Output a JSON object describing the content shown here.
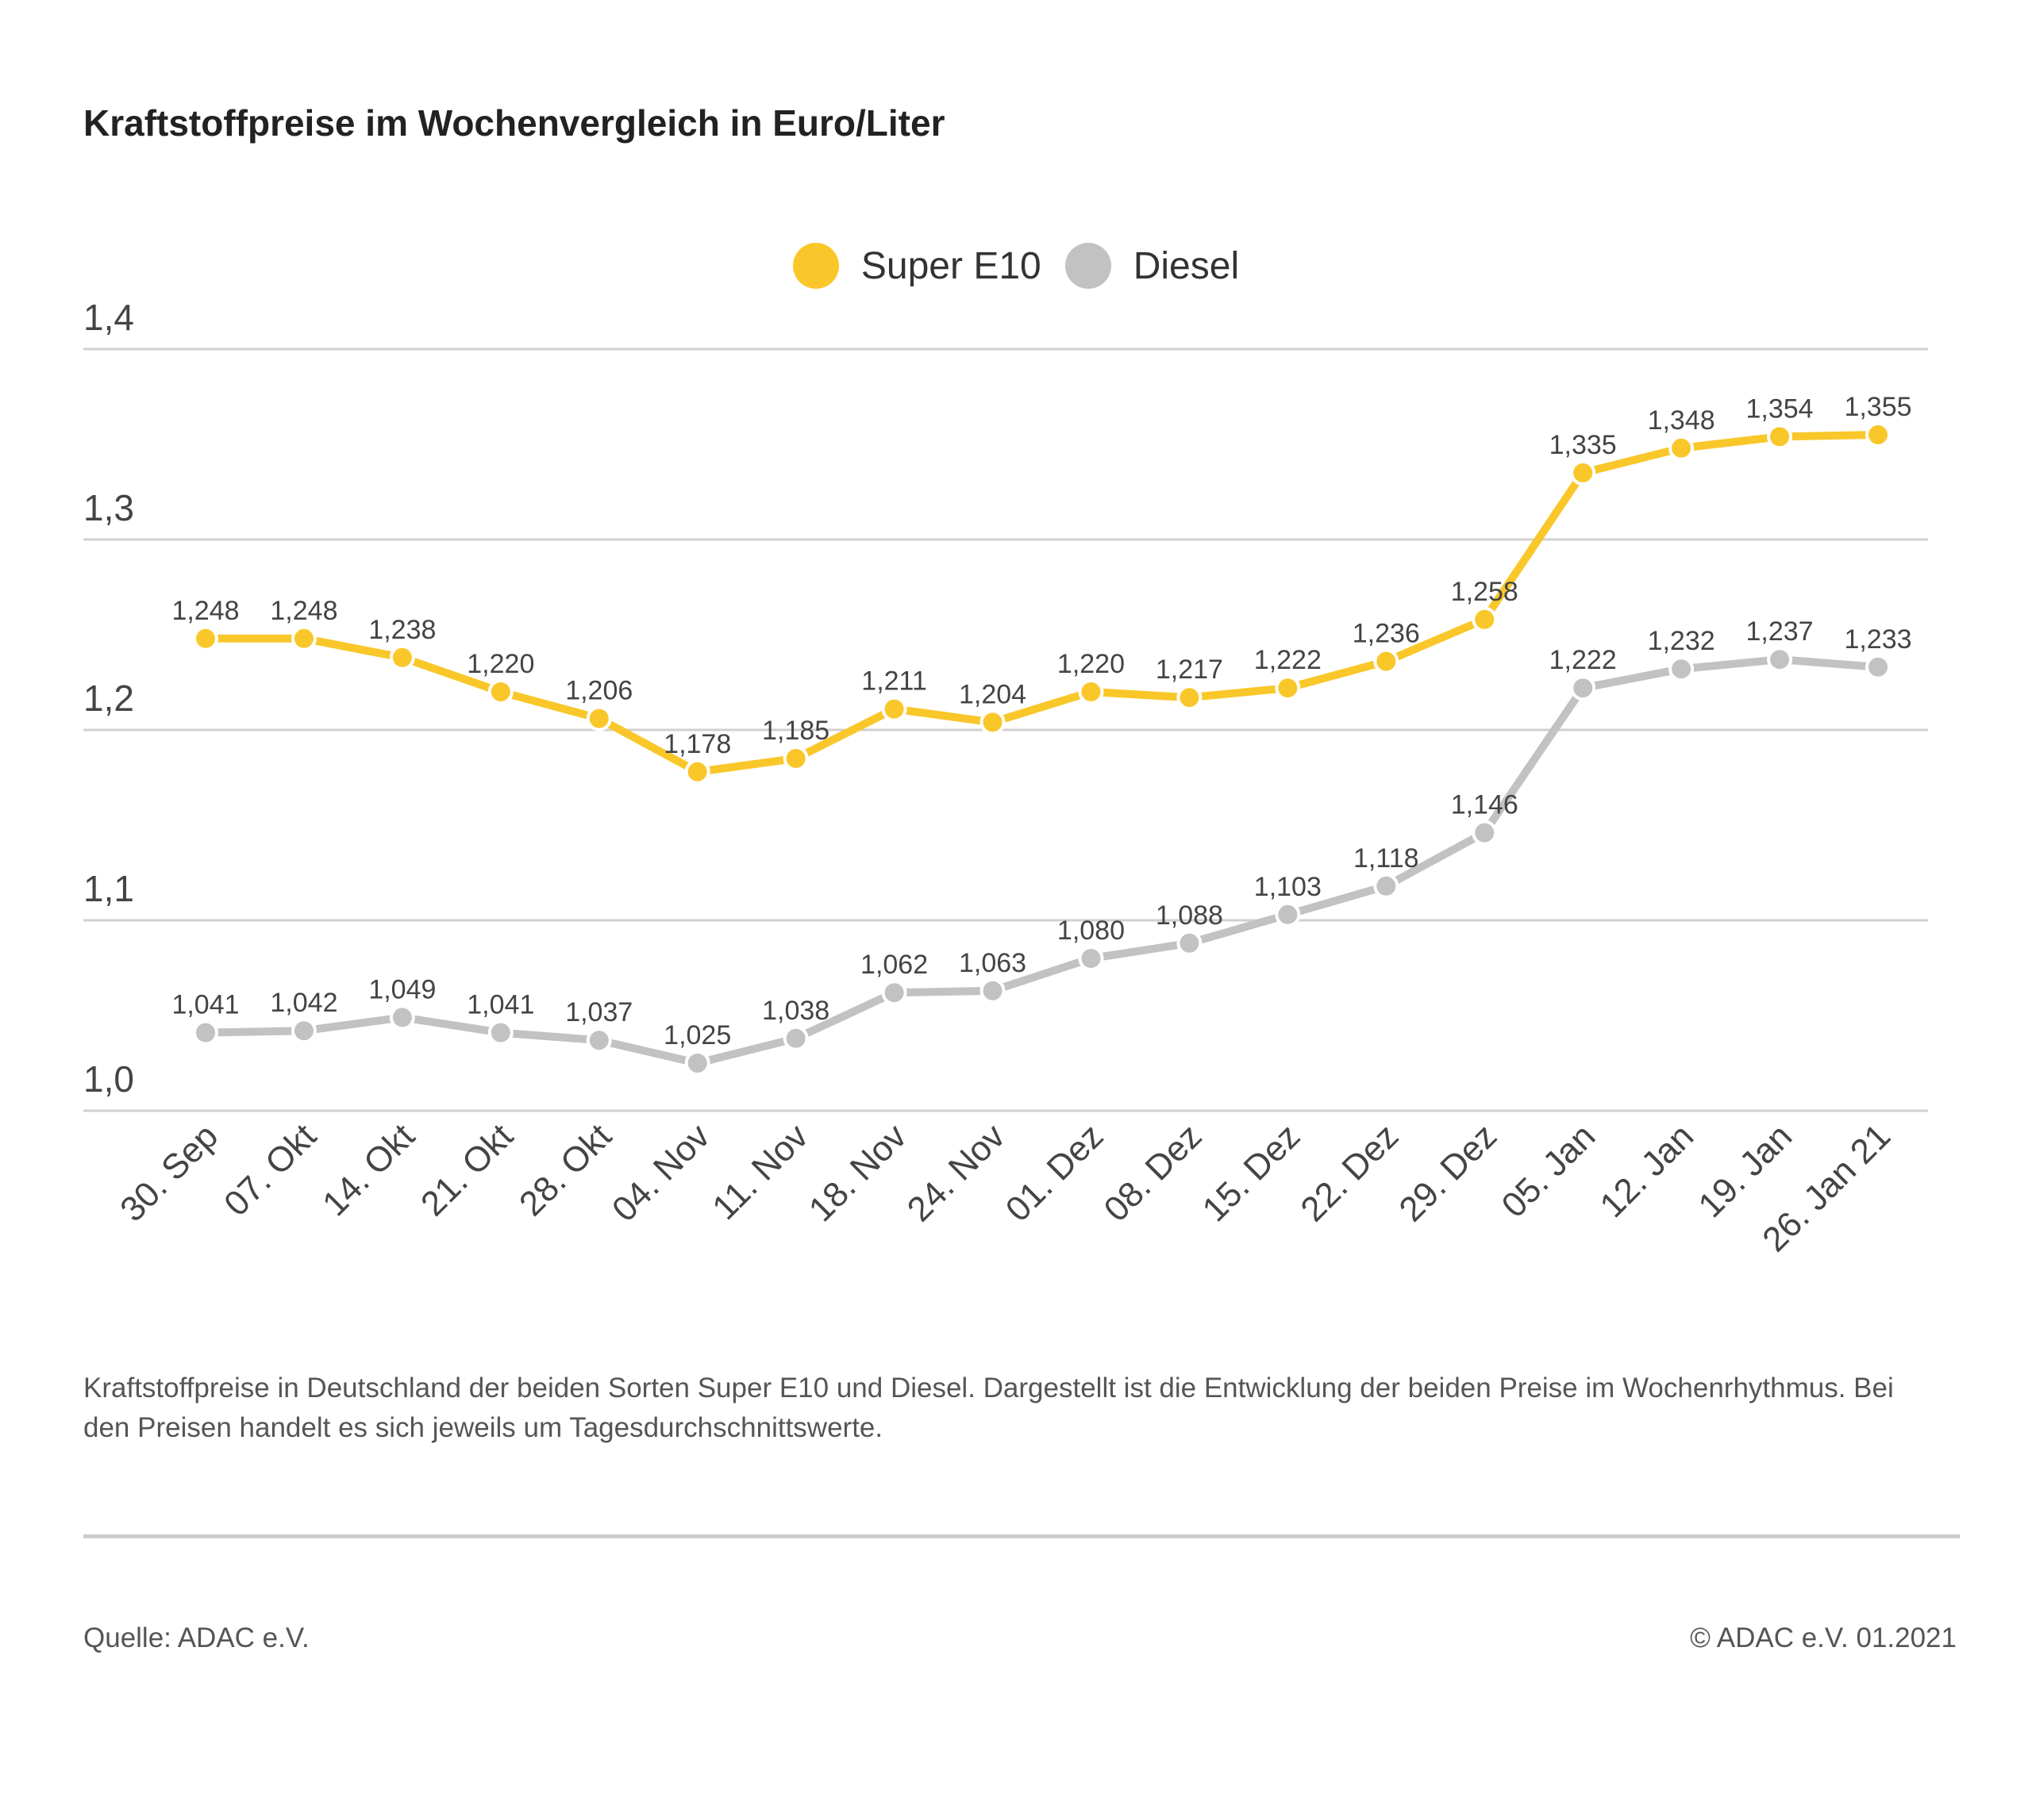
{
  "chart_data": {
    "type": "line",
    "title": "Kraftstoffpreise im Wochenvergleich in Euro/Liter",
    "categories": [
      "30. Sep",
      "07. Okt",
      "14. Okt",
      "21. Okt",
      "28. Okt",
      "04. Nov",
      "11. Nov",
      "18. Nov",
      "24. Nov",
      "01. Dez",
      "08. Dez",
      "15. Dez",
      "22. Dez",
      "29. Dez",
      "05. Jan",
      "12. Jan",
      "19. Jan",
      "26. Jan 21"
    ],
    "series": [
      {
        "name": "Super E10",
        "color": "#f9c72a",
        "values": [
          1.248,
          1.248,
          1.238,
          1.22,
          1.206,
          1.178,
          1.185,
          1.211,
          1.204,
          1.22,
          1.217,
          1.222,
          1.236,
          1.258,
          1.335,
          1.348,
          1.354,
          1.355
        ],
        "labels": [
          "1,248",
          "1,248",
          "1,238",
          "1,220",
          "1,206",
          "1,178",
          "1,185",
          "1,211",
          "1,204",
          "1,220",
          "1,217",
          "1,222",
          "1,236",
          "1,258",
          "1,335",
          "1,348",
          "1,354",
          "1,355"
        ]
      },
      {
        "name": "Diesel",
        "color": "#c2c2c2",
        "values": [
          1.041,
          1.042,
          1.049,
          1.041,
          1.037,
          1.025,
          1.038,
          1.062,
          1.063,
          1.08,
          1.088,
          1.103,
          1.118,
          1.146,
          1.222,
          1.232,
          1.237,
          1.233
        ],
        "labels": [
          "1,041",
          "1,042",
          "1,049",
          "1,041",
          "1,037",
          "1,025",
          "1,038",
          "1,062",
          "1,063",
          "1,080",
          "1,088",
          "1,103",
          "1,118",
          "1,146",
          "1,222",
          "1,232",
          "1,237",
          "1,233"
        ]
      }
    ],
    "ylim": [
      1.0,
      1.4
    ],
    "yticks": [
      1.0,
      1.1,
      1.2,
      1.3,
      1.4
    ],
    "ytick_labels": [
      "1,0",
      "1,1",
      "1,2",
      "1,3",
      "1,4"
    ],
    "grid": true,
    "legend_position": "top-center",
    "xlabel": "",
    "ylabel": ""
  },
  "caption": "Kraftstoffpreise in Deutschland der beiden Sorten Super E10 und Diesel. Dargestellt ist die Entwicklung der beiden Preise im Wochenrhythmus. Bei den Preisen handelt es sich jeweils um Tagesdurchschnittswerte.",
  "source": "Quelle: ADAC e.V.",
  "copyright": "© ADAC e.V. 01.2021"
}
